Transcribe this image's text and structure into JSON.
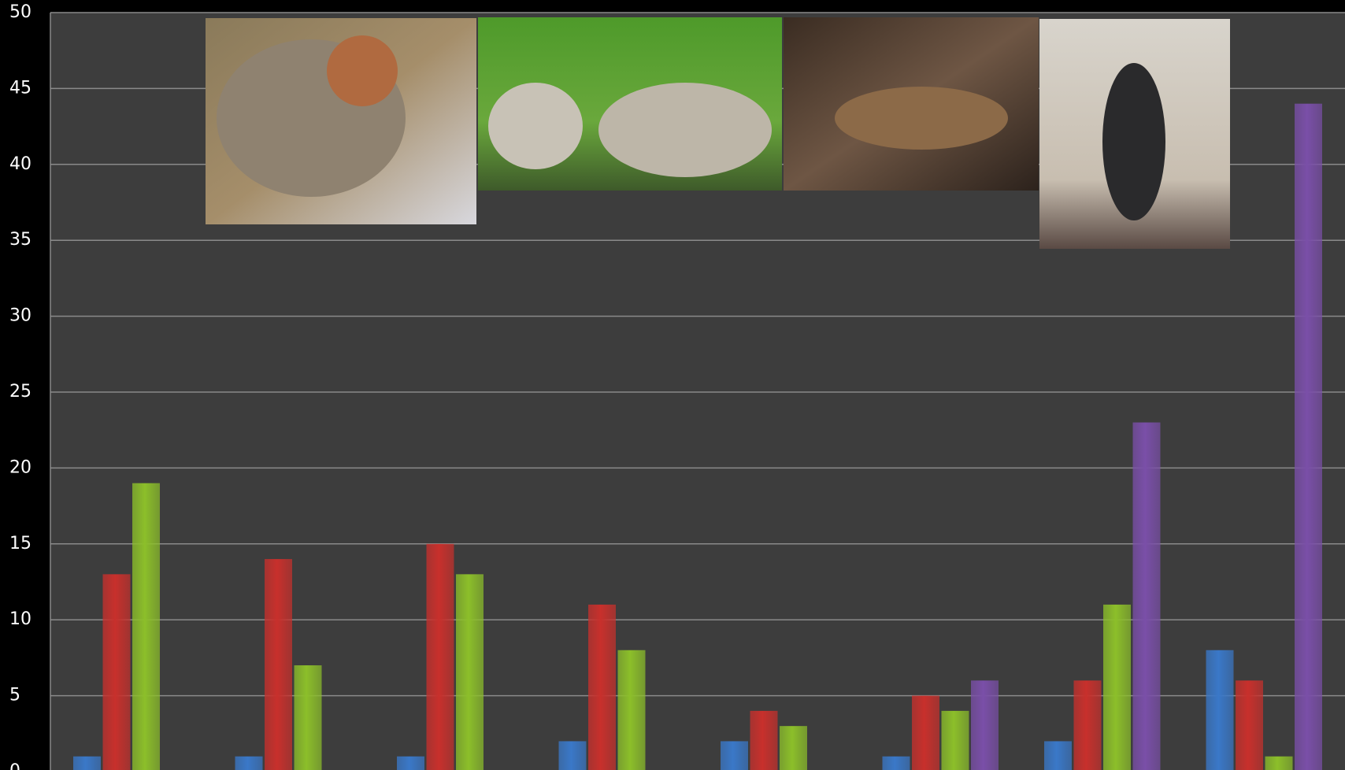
{
  "chart_data": {
    "type": "bar",
    "categories": [
      null,
      null,
      null,
      null,
      null,
      null,
      null,
      null
    ],
    "series": [
      {
        "color": "#3a78c8",
        "values": [
          1,
          1,
          1,
          2,
          2,
          1,
          2,
          8
        ]
      },
      {
        "color": "#c8302c",
        "values": [
          13,
          14,
          15,
          11,
          4,
          5,
          6,
          6
        ]
      },
      {
        "color": "#8cbf2a",
        "values": [
          19,
          7,
          13,
          8,
          3,
          4,
          11,
          1
        ]
      },
      {
        "color": "#7a4fa8",
        "values": [
          null,
          null,
          null,
          null,
          null,
          6,
          23,
          44
        ]
      }
    ],
    "ylim": [
      0,
      50
    ],
    "yticks": [
      0,
      5,
      10,
      15,
      20,
      25,
      30,
      35,
      40,
      45,
      50
    ],
    "grid": true
  }
}
